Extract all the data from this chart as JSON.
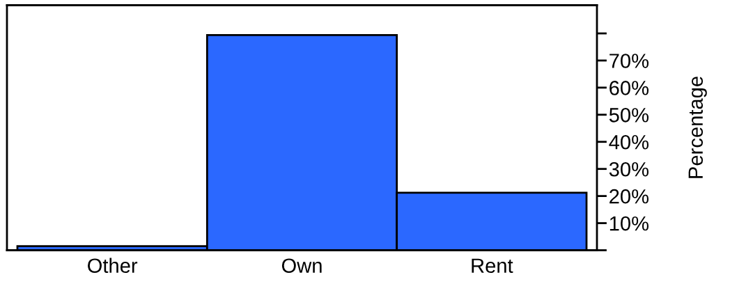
{
  "chart_data": {
    "type": "bar",
    "ylabel": "Percentage",
    "categories": [
      "Other",
      "Own",
      "Rent"
    ],
    "values": [
      1.5,
      79.4,
      21.2
    ],
    "color": "#2b68ff",
    "ylim": [
      0,
      90.4
    ],
    "yticks": [
      {
        "value": 0,
        "label": null
      },
      {
        "value": 10,
        "label": "10%"
      },
      {
        "value": 20,
        "label": "20%"
      },
      {
        "value": 30,
        "label": "30%"
      },
      {
        "value": 40,
        "label": "40%"
      },
      {
        "value": 50,
        "label": "50%"
      },
      {
        "value": 60,
        "label": "60%"
      },
      {
        "value": 70,
        "label": "70%"
      },
      {
        "value": 80,
        "label": null
      }
    ],
    "grid": false,
    "legend": false
  }
}
